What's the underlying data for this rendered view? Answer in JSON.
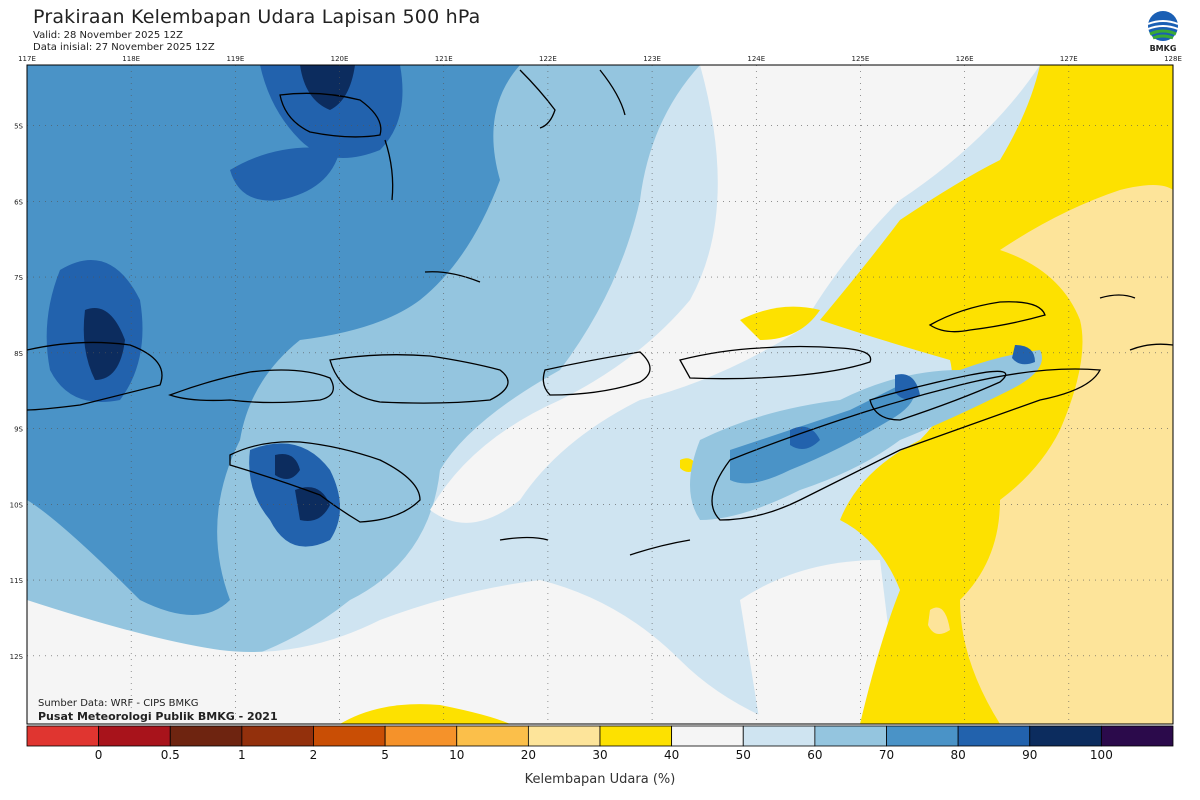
{
  "header": {
    "title": "Prakiraan Kelembapan Udara Lapisan 500 hPa",
    "valid": "Valid: 28 November 2025 12Z",
    "initial": "Data inisial: 27 November 2025 12Z",
    "logo_text": "BMKG"
  },
  "map": {
    "lon_labels": [
      "117E",
      "118E",
      "119E",
      "120E",
      "121E",
      "122E",
      "123E",
      "124E",
      "125E",
      "126E",
      "127E",
      "128E"
    ],
    "lat_labels": [
      "5S",
      "6S",
      "7S",
      "8S",
      "9S",
      "10S",
      "11S",
      "12S"
    ],
    "lon_range": [
      117,
      128
    ],
    "lat_range": [
      -4.2,
      -12.9
    ]
  },
  "footer": {
    "source": "Sumber Data: WRF - CIPS BMKG",
    "center": "Pusat Meteorologi Publik BMKG - 2021"
  },
  "colorbar": {
    "title": "Kelembapan Udara (%)",
    "labels": [
      "0",
      "0.5",
      "1",
      "2",
      "5",
      "10",
      "20",
      "30",
      "40",
      "50",
      "60",
      "70",
      "80",
      "90",
      "100"
    ],
    "colors": [
      "#e03530",
      "#a8131b",
      "#6e2410",
      "#93300c",
      "#c94e05",
      "#f5922a",
      "#fbbf4a",
      "#fde49a",
      "#fde100",
      "#f5f5f5",
      "#cfe4f1",
      "#94c5df",
      "#4a93c7",
      "#2262ad",
      "#0c2c5e",
      "#2b0a4b"
    ]
  },
  "colors": {
    "dry_yellow": "#fde100",
    "light_orange": "#fde49a",
    "neutral": "#f5f5f5",
    "lightest_blue": "#cfe4f1",
    "light_blue": "#94c5df",
    "mid_blue": "#4a93c7",
    "dark_blue": "#2262ad",
    "darkest_blue": "#0c2c5e"
  }
}
